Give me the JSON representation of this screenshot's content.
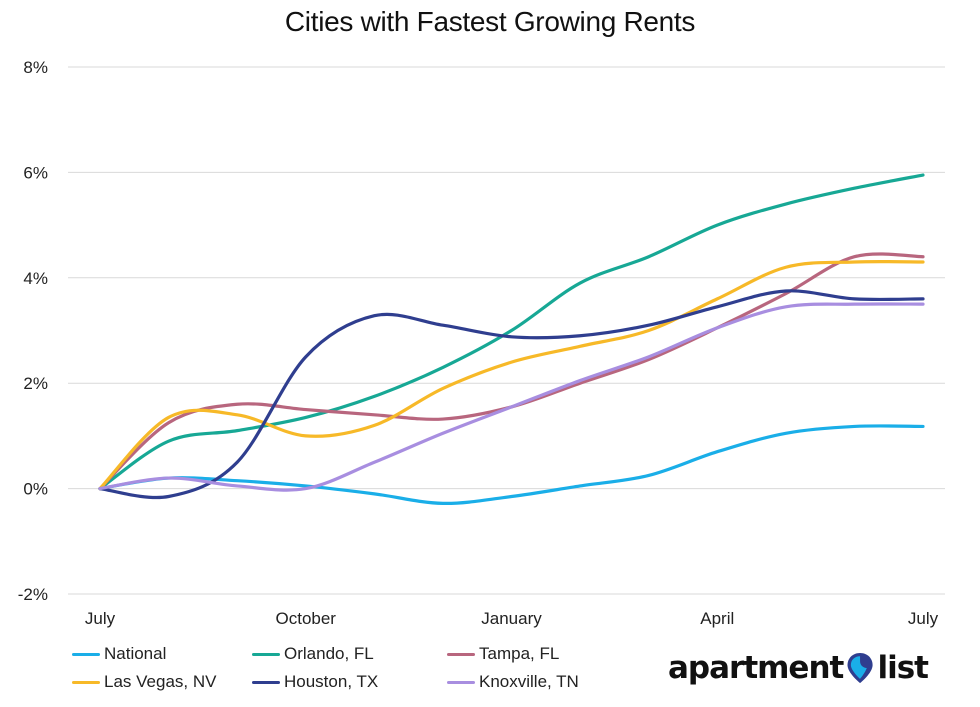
{
  "chart_data": {
    "type": "line",
    "title": "Cities with Fastest Growing Rents",
    "x": [
      0,
      1,
      2,
      3,
      4,
      5,
      6,
      7,
      8,
      9,
      10,
      11,
      12
    ],
    "x_tick_labels": [
      {
        "at": 0,
        "label": "July"
      },
      {
        "at": 3,
        "label": "October"
      },
      {
        "at": 6,
        "label": "January"
      },
      {
        "at": 9,
        "label": "April"
      },
      {
        "at": 12,
        "label": "July"
      }
    ],
    "y_ticks": [
      -2,
      0,
      2,
      4,
      6,
      8
    ],
    "y_tick_labels": [
      "-2%",
      "0%",
      "2%",
      "4%",
      "6%",
      "8%"
    ],
    "ylim": [
      -2,
      8
    ],
    "grid": true,
    "legend_position": "bottom-left",
    "series": [
      {
        "name": "National",
        "color": "#1aaee8",
        "values": [
          0,
          0.2,
          0.15,
          0.05,
          -0.1,
          -0.28,
          -0.15,
          0.05,
          0.25,
          0.7,
          1.05,
          1.18,
          1.18
        ]
      },
      {
        "name": "Orlando, FL",
        "color": "#17a895",
        "values": [
          0,
          0.9,
          1.1,
          1.35,
          1.75,
          2.3,
          3.0,
          3.9,
          4.4,
          5.0,
          5.4,
          5.7,
          5.95
        ]
      },
      {
        "name": "Tampa, FL",
        "color": "#b8667e",
        "values": [
          0,
          1.25,
          1.6,
          1.5,
          1.4,
          1.32,
          1.55,
          2.0,
          2.45,
          3.05,
          3.7,
          4.4,
          4.4
        ]
      },
      {
        "name": "Las Vegas, NV",
        "color": "#f7b928",
        "values": [
          0,
          1.35,
          1.4,
          1.0,
          1.2,
          1.9,
          2.4,
          2.7,
          3.0,
          3.6,
          4.2,
          4.3,
          4.3
        ]
      },
      {
        "name": "Houston, TX",
        "color": "#2f3e8f",
        "values": [
          0,
          -0.15,
          0.5,
          2.5,
          3.28,
          3.1,
          2.88,
          2.9,
          3.1,
          3.45,
          3.75,
          3.6,
          3.6
        ]
      },
      {
        "name": "Knoxville, TN",
        "color": "#a88ee0",
        "values": [
          0,
          0.2,
          0.05,
          0.0,
          0.5,
          1.05,
          1.55,
          2.05,
          2.5,
          3.05,
          3.45,
          3.5,
          3.5
        ]
      }
    ]
  },
  "logo": {
    "left": "apartment",
    "right": "list",
    "pin_color": "#1aaee8",
    "pin_dark": "#2f3e8f"
  }
}
